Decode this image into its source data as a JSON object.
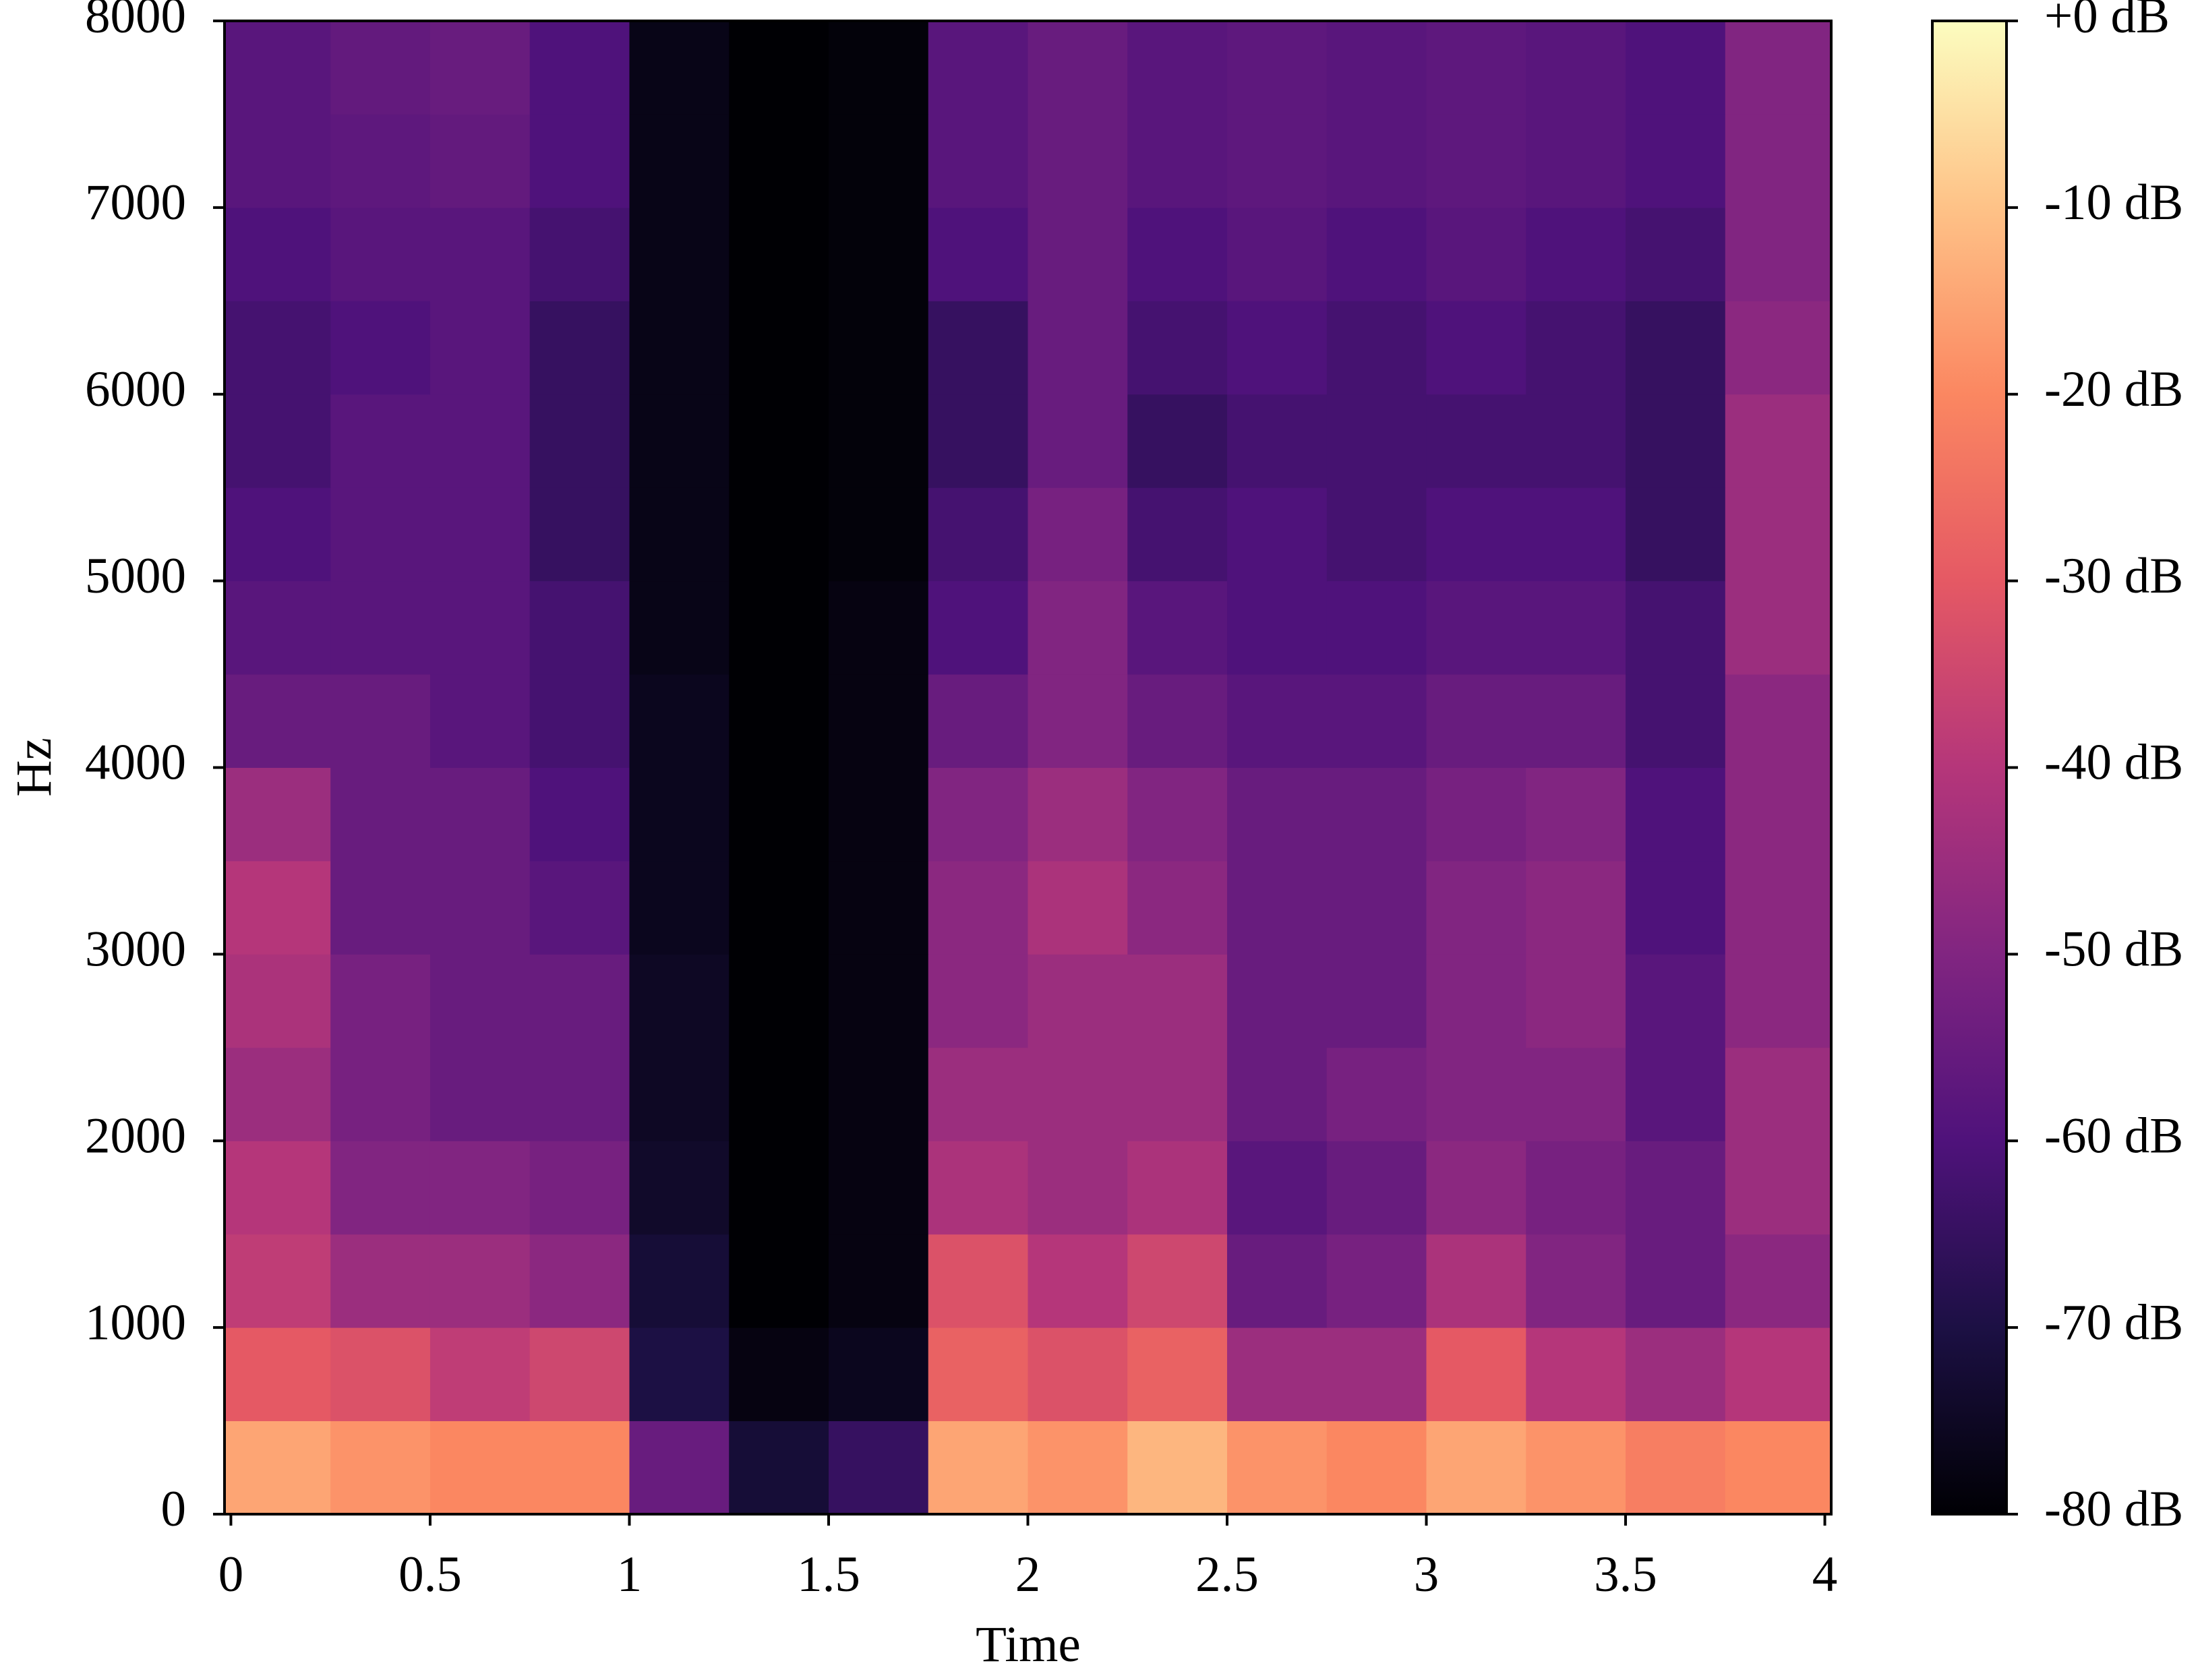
{
  "chart_data": {
    "type": "spectrogram",
    "xlabel": "Time",
    "ylabel": "Hz",
    "xlim": [
      -0.016,
      4.016
    ],
    "ylim": [
      0,
      8000
    ],
    "xticks": [
      0,
      0.5,
      1,
      1.5,
      2,
      2.5,
      3,
      3.5,
      4
    ],
    "yticks": [
      0,
      1000,
      2000,
      3000,
      4000,
      5000,
      6000,
      7000,
      8000
    ],
    "xbins": [
      -0.016,
      0.25,
      0.5,
      0.75,
      1.0,
      1.25,
      1.5,
      1.75,
      2.0,
      2.25,
      2.5,
      2.75,
      3.0,
      3.25,
      3.5,
      3.75,
      4.016
    ],
    "ybins": [
      0,
      500,
      1000,
      1500,
      2000,
      2500,
      3000,
      3500,
      4000,
      4500,
      5000,
      5500,
      6000,
      6500,
      7000,
      7500,
      8000
    ],
    "z": [
      [
        -15,
        -18,
        -20,
        -20,
        -55,
        -72,
        -65,
        -15,
        -18,
        -12,
        -18,
        -20,
        -15,
        -18,
        -22,
        -20
      ],
      [
        -30,
        -32,
        -38,
        -35,
        -70,
        -78,
        -76,
        -28,
        -32,
        -28,
        -45,
        -45,
        -30,
        -40,
        -45,
        -40
      ],
      [
        -38,
        -45,
        -45,
        -48,
        -72,
        -80,
        -78,
        -32,
        -40,
        -35,
        -55,
        -52,
        -42,
        -50,
        -55,
        -48
      ],
      [
        -40,
        -50,
        -50,
        -52,
        -74,
        -80,
        -78,
        -42,
        -45,
        -42,
        -58,
        -55,
        -48,
        -52,
        -55,
        -45
      ],
      [
        -45,
        -52,
        -55,
        -55,
        -75,
        -80,
        -78,
        -45,
        -45,
        -45,
        -55,
        -52,
        -50,
        -50,
        -58,
        -45
      ],
      [
        -42,
        -52,
        -55,
        -55,
        -75,
        -80,
        -78,
        -48,
        -45,
        -45,
        -55,
        -55,
        -50,
        -48,
        -58,
        -48
      ],
      [
        -40,
        -55,
        -55,
        -58,
        -76,
        -80,
        -78,
        -48,
        -42,
        -48,
        -55,
        -55,
        -50,
        -48,
        -60,
        -48
      ],
      [
        -45,
        -55,
        -55,
        -60,
        -76,
        -80,
        -78,
        -50,
        -45,
        -50,
        -55,
        -55,
        -52,
        -50,
        -60,
        -48
      ],
      [
        -55,
        -55,
        -58,
        -62,
        -76,
        -80,
        -78,
        -55,
        -50,
        -55,
        -58,
        -58,
        -55,
        -55,
        -62,
        -48
      ],
      [
        -58,
        -58,
        -58,
        -62,
        -77,
        -80,
        -78,
        -60,
        -50,
        -58,
        -60,
        -60,
        -58,
        -58,
        -62,
        -45
      ],
      [
        -60,
        -58,
        -58,
        -65,
        -77,
        -80,
        -79,
        -62,
        -52,
        -62,
        -60,
        -62,
        -60,
        -60,
        -65,
        -45
      ],
      [
        -62,
        -58,
        -58,
        -65,
        -77,
        -80,
        -79,
        -65,
        -55,
        -65,
        -62,
        -62,
        -62,
        -62,
        -65,
        -45
      ],
      [
        -62,
        -60,
        -58,
        -65,
        -77,
        -80,
        -79,
        -65,
        -55,
        -62,
        -60,
        -62,
        -60,
        -62,
        -65,
        -48
      ],
      [
        -60,
        -58,
        -58,
        -62,
        -77,
        -80,
        -79,
        -60,
        -55,
        -60,
        -58,
        -60,
        -58,
        -60,
        -62,
        -50
      ],
      [
        -58,
        -57,
        -56,
        -60,
        -77,
        -80,
        -79,
        -58,
        -55,
        -58,
        -57,
        -58,
        -57,
        -58,
        -60,
        -50
      ],
      [
        -58,
        -56,
        -55,
        -60,
        -77,
        -80,
        -79,
        -58,
        -55,
        -58,
        -57,
        -58,
        -57,
        -58,
        -60,
        -50
      ]
    ],
    "colormap": [
      "#000004",
      "#1c1044",
      "#4f127b",
      "#812581",
      "#b5367a",
      "#e55964",
      "#fb8761",
      "#fec287",
      "#fcfdbf"
    ],
    "clim": [
      -80,
      0
    ],
    "cticks": [
      {
        "value": 0,
        "label": "+0 dB"
      },
      {
        "value": -10,
        "label": "-10 dB"
      },
      {
        "value": -20,
        "label": "-20 dB"
      },
      {
        "value": -30,
        "label": "-30 dB"
      },
      {
        "value": -40,
        "label": "-40 dB"
      },
      {
        "value": -50,
        "label": "-50 dB"
      },
      {
        "value": -60,
        "label": "-60 dB"
      },
      {
        "value": -70,
        "label": "-70 dB"
      },
      {
        "value": -80,
        "label": "-80 dB"
      }
    ]
  }
}
